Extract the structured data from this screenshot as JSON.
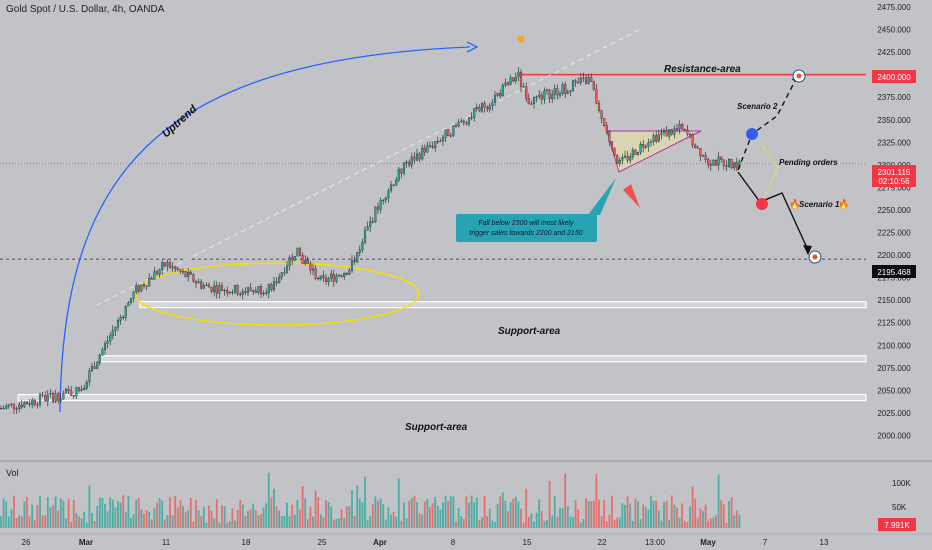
{
  "header": {
    "symbol_line": "Gold Spot / U.S. Dollar, 4h, OANDA"
  },
  "volume_panel": {
    "label": "Vol",
    "ticks": [
      "100K",
      "50K"
    ],
    "current": "7.991K"
  },
  "price_tags": {
    "resistance": "2400.000",
    "last_price": "2301.115",
    "countdown": "02:10:56",
    "level": "2195.468"
  },
  "annotations": {
    "uptrend": "Uptrend",
    "resistance_area": "Resistance-area",
    "support_area_1": "Support-area",
    "support_area_2": "Support-area",
    "scenario_2": "Scenario 2",
    "scenario_1": "Scenario 1",
    "pending_orders": "Pending orders",
    "callout_line1": "Fall below 2300 will most likely",
    "callout_line2": "trigger sales towards 2200 and 2150"
  },
  "colors": {
    "background": "#c2c3c7",
    "bull": "#26a69a",
    "bear": "#ef5350",
    "resistance_line": "#f23645",
    "uptrend_arc": "#2962ff",
    "ellipse": "#f5e000",
    "callout": "#27a3b3",
    "triangle": "#b12fb5"
  },
  "chart_data": {
    "type": "candlestick",
    "title": "Gold Spot / U.S. Dollar, 4h, OANDA",
    "y_axis": {
      "range": [
        2000,
        2475
      ],
      "ticks": [
        "2475.000",
        "2450.000",
        "2425.000",
        "2400.000",
        "2375.000",
        "2350.000",
        "2325.000",
        "2300.000",
        "2275.000",
        "2250.000",
        "2225.000",
        "2200.000",
        "2175.000",
        "2150.000",
        "2125.000",
        "2100.000",
        "2075.000",
        "2050.000",
        "2025.000",
        "2000.000"
      ]
    },
    "x_axis": {
      "ticks": [
        "26",
        "Mar",
        "11",
        "18",
        "25",
        "Apr",
        "8",
        "15",
        "22",
        "13:00",
        "May",
        "7",
        "13"
      ]
    },
    "price_path": [
      [
        "26",
        2030
      ],
      [
        "Mar",
        2050
      ],
      [
        "Mar+2d",
        2100
      ],
      [
        "Mar+5d",
        2160
      ],
      [
        "11",
        2190
      ],
      [
        "14",
        2165
      ],
      [
        "18",
        2160
      ],
      [
        "21",
        2165
      ],
      [
        "22",
        2205
      ],
      [
        "25",
        2170
      ],
      [
        "28",
        2185
      ],
      [
        "Apr",
        2260
      ],
      [
        "4",
        2300
      ],
      [
        "8",
        2340
      ],
      [
        "12",
        2370
      ],
      [
        "13",
        2400
      ],
      [
        "15",
        2370
      ],
      [
        "18",
        2385
      ],
      [
        "19",
        2395
      ],
      [
        "22",
        2350
      ],
      [
        "23",
        2300
      ],
      [
        "26",
        2330
      ],
      [
        "29",
        2340
      ],
      [
        "13:00",
        2330
      ],
      [
        "May",
        2305
      ],
      [
        "May+2d",
        2301
      ]
    ],
    "levels": {
      "resistance": 2400,
      "last": 2301.115,
      "dashed": 2195.468,
      "support": [
        2145,
        2085,
        2042
      ]
    },
    "volume_range": [
      0,
      140
    ]
  }
}
